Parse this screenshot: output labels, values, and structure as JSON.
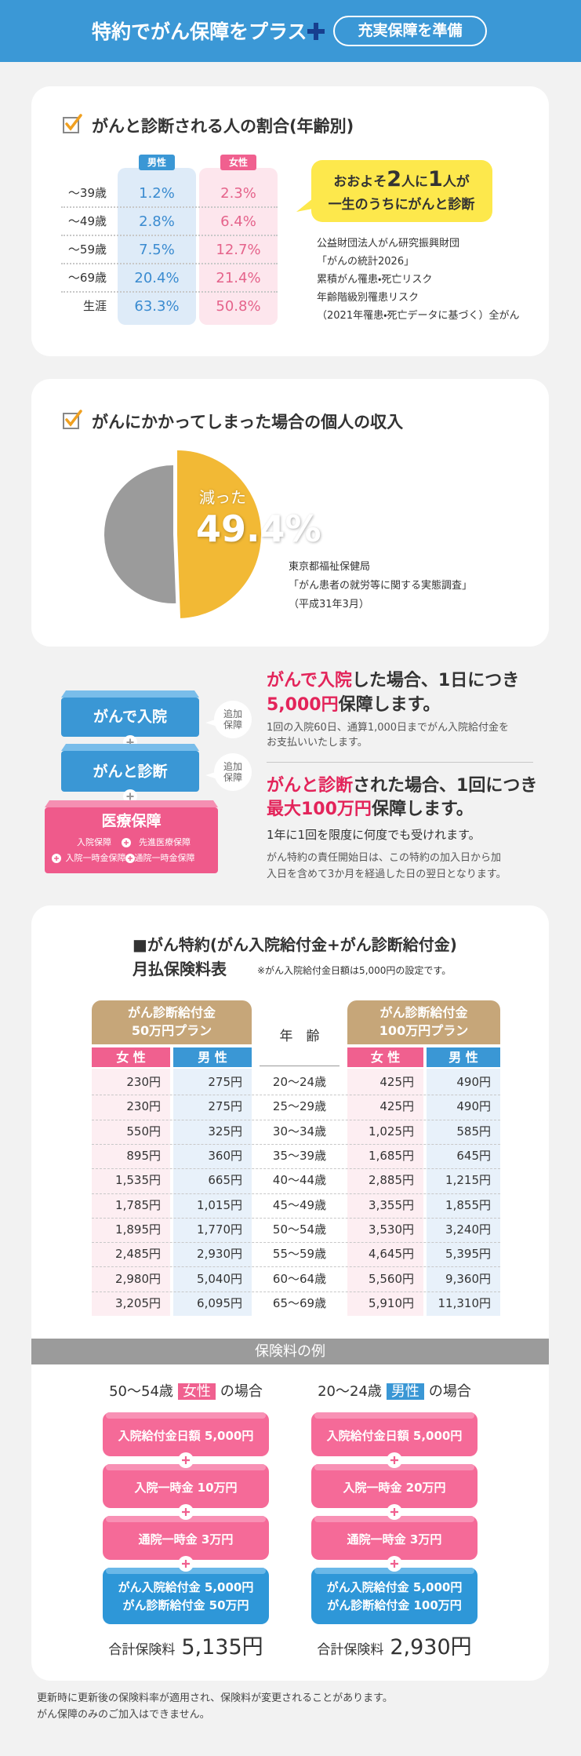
{
  "header": {
    "title": "特約でがん保障をプラス",
    "badge": "充実保障を準備"
  },
  "incidence": {
    "title": "がんと診断される人の割合(年齢別)",
    "columns": [
      "男性",
      "女性"
    ],
    "rows": [
      [
        "～39歳",
        "1.2%",
        "2.3%"
      ],
      [
        "～49歳",
        "2.8%",
        "6.4%"
      ],
      [
        "～59歳",
        "7.5%",
        "12.7%"
      ],
      [
        "～69歳",
        "20.4%",
        "21.4%"
      ],
      [
        "生涯",
        "63.3%",
        "50.8%"
      ]
    ],
    "bubble": {
      "line1": [
        "おおよそ",
        "2",
        "人に",
        "1",
        "人が"
      ],
      "line2": "一生のうちにがんと診断"
    },
    "source": [
      "公益財団法人がん研究振興財団",
      "「がんの統計2026」",
      "累積がん罹患・死亡リスク",
      "年齢階級別罹患リスク",
      "（2021年罹患・死亡データに基づく）全がん"
    ]
  },
  "income": {
    "title": "がんにかかってしまった場合の個人の収入",
    "label": "減った",
    "value": 49.4,
    "value_label": "49.4%",
    "source": [
      "東京都福祉保健局",
      "「がん患者の就労等に関する実態調査」",
      "（平成31年3月）"
    ]
  },
  "coverage": {
    "hospital": "がんで入院",
    "diagnosis": "がんと診断",
    "badge": "追加保障",
    "base": "医療保障",
    "base_items": [
      "入院保障",
      "先進医療保障",
      "入院一時金保障",
      "通院一時金保障"
    ],
    "hospital_text": {
      "line1": [
        "がんで入院",
        "した場合、1日につき"
      ],
      "line2": [
        "5,000円",
        "保障します。"
      ],
      "note": [
        "1回の入院60日、通算1,000日までがん入院給付金を",
        "お支払いいたします。"
      ]
    },
    "diagnosis_text": {
      "line1": [
        "がんと診断",
        "された場合、1回につき"
      ],
      "line2": [
        "最大100万円",
        "保障します。"
      ],
      "note": "1年に1回を限度に何度でも受けれます。",
      "detail": [
        "がん特約の責任開始日は、この特約の加入日から加",
        "入日を含めて3か月を経過した日の翌日となります。"
      ]
    }
  },
  "premium": {
    "title": "■がん特約(がん入院給付金+がん診断給付金)",
    "subtitle": "月払保険料表",
    "note": "※がん入院給付金日額は5,000円の設定です。",
    "plans": [
      [
        "がん診断給付金",
        "50万円プラン"
      ],
      [
        "がん診断給付金",
        "100万円プラン"
      ]
    ],
    "genders": [
      "女 性",
      "男 性"
    ],
    "age_header": "年　齢",
    "rows": [
      [
        "230円",
        "275円",
        "20～24歳",
        "425円",
        "490円"
      ],
      [
        "230円",
        "275円",
        "25～29歳",
        "425円",
        "490円"
      ],
      [
        "550円",
        "325円",
        "30～34歳",
        "1,025円",
        "585円"
      ],
      [
        "895円",
        "360円",
        "35～39歳",
        "1,685円",
        "645円"
      ],
      [
        "1,535円",
        "665円",
        "40～44歳",
        "2,885円",
        "1,215円"
      ],
      [
        "1,785円",
        "1,015円",
        "45～49歳",
        "3,355円",
        "1,855円"
      ],
      [
        "1,895円",
        "1,770円",
        "50～54歳",
        "3,530円",
        "3,240円"
      ],
      [
        "2,485円",
        "2,930円",
        "55～59歳",
        "4,645円",
        "5,395円"
      ],
      [
        "2,980円",
        "5,040円",
        "60～64歳",
        "5,560円",
        "9,360円"
      ],
      [
        "3,205円",
        "6,095円",
        "65～69歳",
        "5,910円",
        "11,310円"
      ]
    ]
  },
  "examples": {
    "title": "保険料の例",
    "cases": [
      {
        "age": "50～54歳",
        "gender": "女性",
        "suffix": "の場合",
        "items": [
          "入院給付金日額 5,000円",
          "入院一時金 10万円",
          "通院一時金 3万円"
        ],
        "final": [
          "がん入院給付金 5,000円",
          "がん診断給付金 50万円"
        ],
        "total_label": "合計保険料",
        "total": "5,135円"
      },
      {
        "age": "20～24歳",
        "gender": "男性",
        "suffix": "の場合",
        "items": [
          "入院給付金日額 5,000円",
          "入院一時金 20万円",
          "通院一時金 3万円"
        ],
        "final": [
          "がん入院給付金 5,000円",
          "がん診断給付金 100万円"
        ],
        "total_label": "合計保険料",
        "total": "2,930円"
      }
    ]
  },
  "footer": [
    "更新時に更新後の保険料率が適用され、保険料が変更されることがあります。",
    "がん保障のみのご加入はできません。"
  ]
}
